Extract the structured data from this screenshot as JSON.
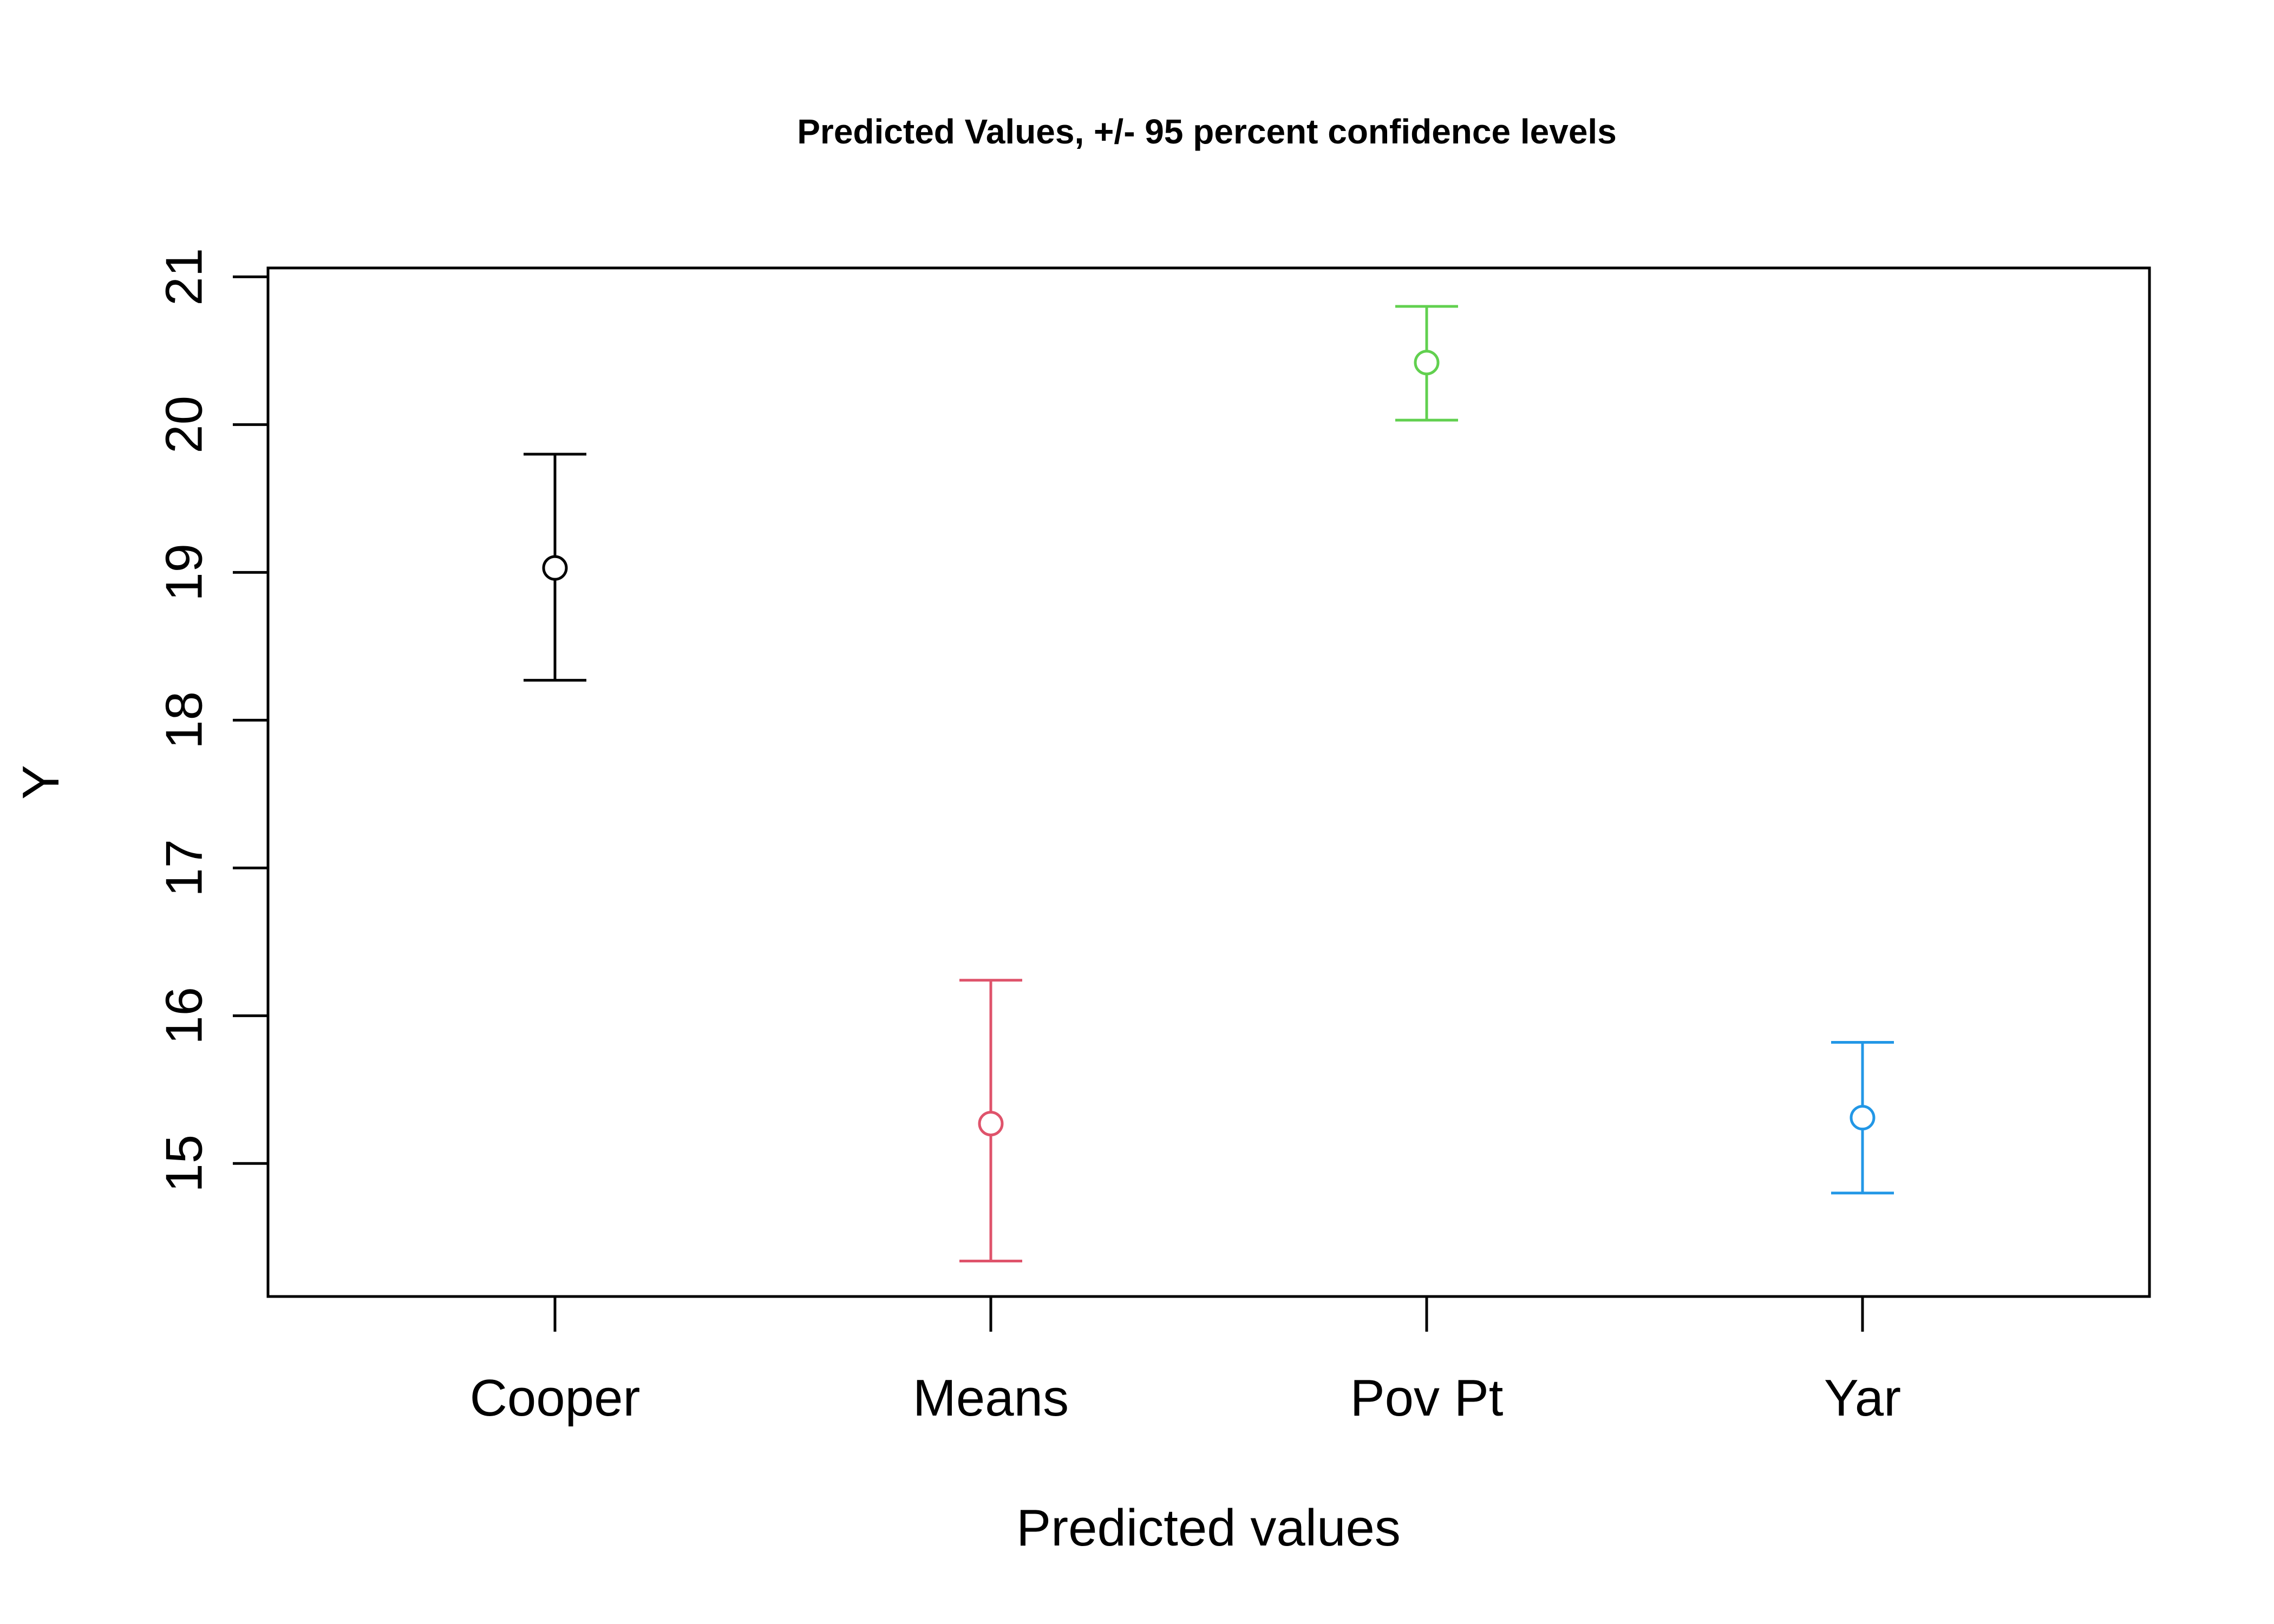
{
  "chart_data": {
    "type": "scatter",
    "title": "Predicted Values, +/- 95 percent confidence levels",
    "xlabel": "Predicted values",
    "ylabel": "Y",
    "categories": [
      "Cooper",
      "Means",
      "Pov Pt",
      "Yar"
    ],
    "y_ticks": [
      "15",
      "16",
      "17",
      "18",
      "19",
      "20",
      "21"
    ],
    "ylim": [
      14.1,
      21.06
    ],
    "grid": false,
    "points": [
      {
        "category": "Cooper",
        "y": 19.03,
        "lower": 18.27,
        "upper": 19.8,
        "color": "#000000"
      },
      {
        "category": "Means",
        "y": 15.27,
        "lower": 14.34,
        "upper": 16.24,
        "color": "#DF536B"
      },
      {
        "category": "Pov Pt",
        "y": 20.42,
        "lower": 20.03,
        "upper": 20.8,
        "color": "#61D04F"
      },
      {
        "category": "Yar",
        "y": 15.31,
        "lower": 14.8,
        "upper": 15.82,
        "color": "#2297E6"
      }
    ]
  }
}
